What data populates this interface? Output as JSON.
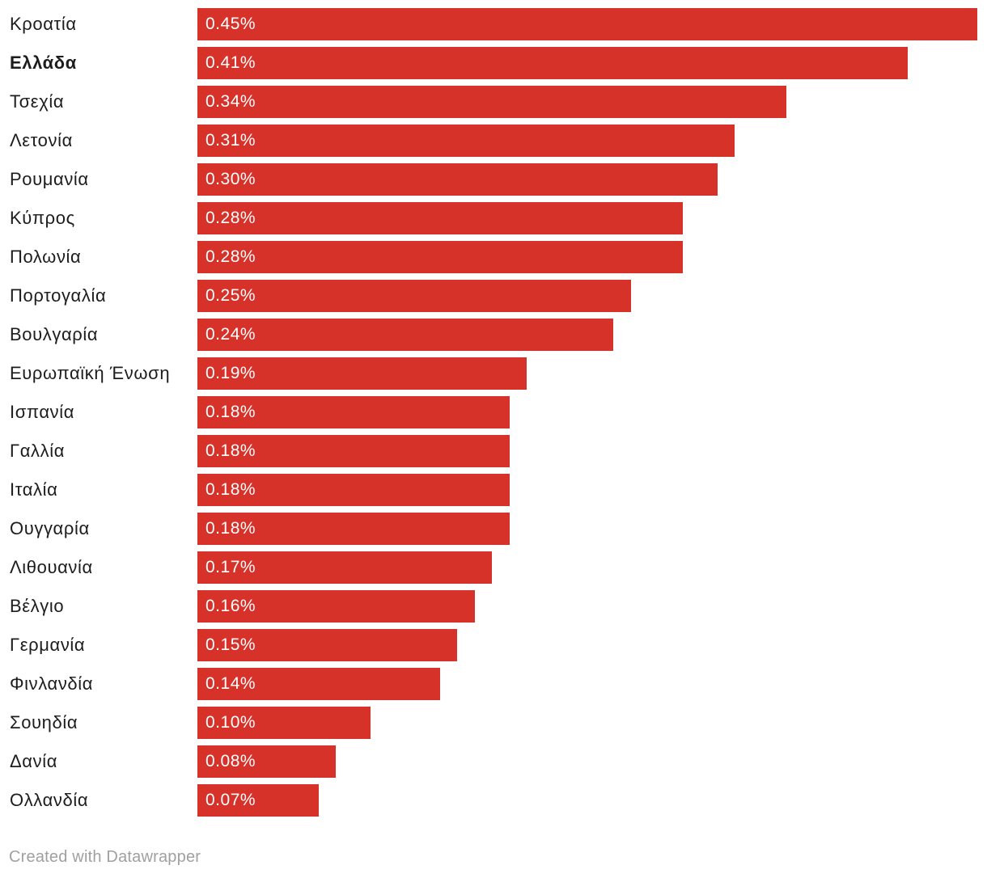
{
  "chart_data": {
    "type": "bar",
    "orientation": "horizontal",
    "categories": [
      "Κροατία",
      "Ελλάδα",
      "Τσεχία",
      "Λετονία",
      "Ρουμανία",
      "Κύπρος",
      "Πολωνία",
      "Πορτογαλία",
      "Βουλγαρία",
      "Ευρωπαϊκή Ένωση",
      "Ισπανία",
      "Γαλλία",
      "Ιταλία",
      "Ουγγαρία",
      "Λιθουανία",
      "Βέλγιο",
      "Γερμανία",
      "Φινλανδία",
      "Σουηδία",
      "Δανία",
      "Ολλανδία"
    ],
    "values": [
      0.45,
      0.41,
      0.34,
      0.31,
      0.3,
      0.28,
      0.28,
      0.25,
      0.24,
      0.19,
      0.18,
      0.18,
      0.18,
      0.18,
      0.17,
      0.16,
      0.15,
      0.14,
      0.1,
      0.08,
      0.07
    ],
    "value_labels": [
      "0.45%",
      "0.41%",
      "0.34%",
      "0.31%",
      "0.30%",
      "0.28%",
      "0.28%",
      "0.25%",
      "0.24%",
      "0.19%",
      "0.18%",
      "0.18%",
      "0.18%",
      "0.18%",
      "0.17%",
      "0.16%",
      "0.15%",
      "0.14%",
      "0.10%",
      "0.08%",
      "0.07%"
    ],
    "highlighted": [
      "Ελλάδα"
    ],
    "xlim": [
      0,
      0.45
    ],
    "bar_color": "#d63229",
    "title": "",
    "xlabel": "",
    "ylabel": ""
  },
  "footer": {
    "credit": "Created with Datawrapper"
  }
}
